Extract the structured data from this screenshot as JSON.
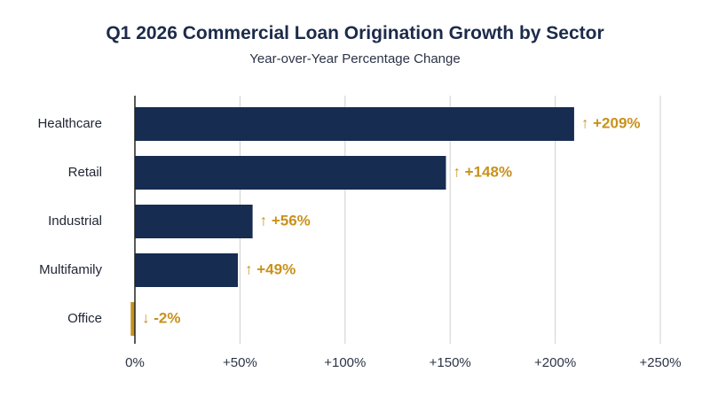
{
  "chart_data": {
    "type": "bar",
    "orientation": "horizontal",
    "title": "Q1 2026 Commercial Loan Origination Growth by Sector",
    "subtitle": "Year-over-Year Percentage Change",
    "xlabel": "",
    "ylabel": "",
    "categories": [
      "Healthcare",
      "Retail",
      "Industrial",
      "Multifamily",
      "Office"
    ],
    "values": [
      209,
      148,
      56,
      49,
      -2
    ],
    "value_labels": [
      "↑ +209%",
      "↑ +148%",
      "↑ +56%",
      "↑ +49%",
      "↓ -2%"
    ],
    "xlim": [
      0,
      250
    ],
    "xticks": [
      0,
      50,
      100,
      150,
      200,
      250
    ],
    "xtick_labels": [
      "0%",
      "+50%",
      "+100%",
      "+150%",
      "+200%",
      "+250%"
    ],
    "grid": "vertical",
    "colors": {
      "positive_bar": "#162c50",
      "negative_bar": "#c8911c",
      "value_label": "#c8911c",
      "grid": "#cfcfcf",
      "axis": "#222222"
    }
  }
}
